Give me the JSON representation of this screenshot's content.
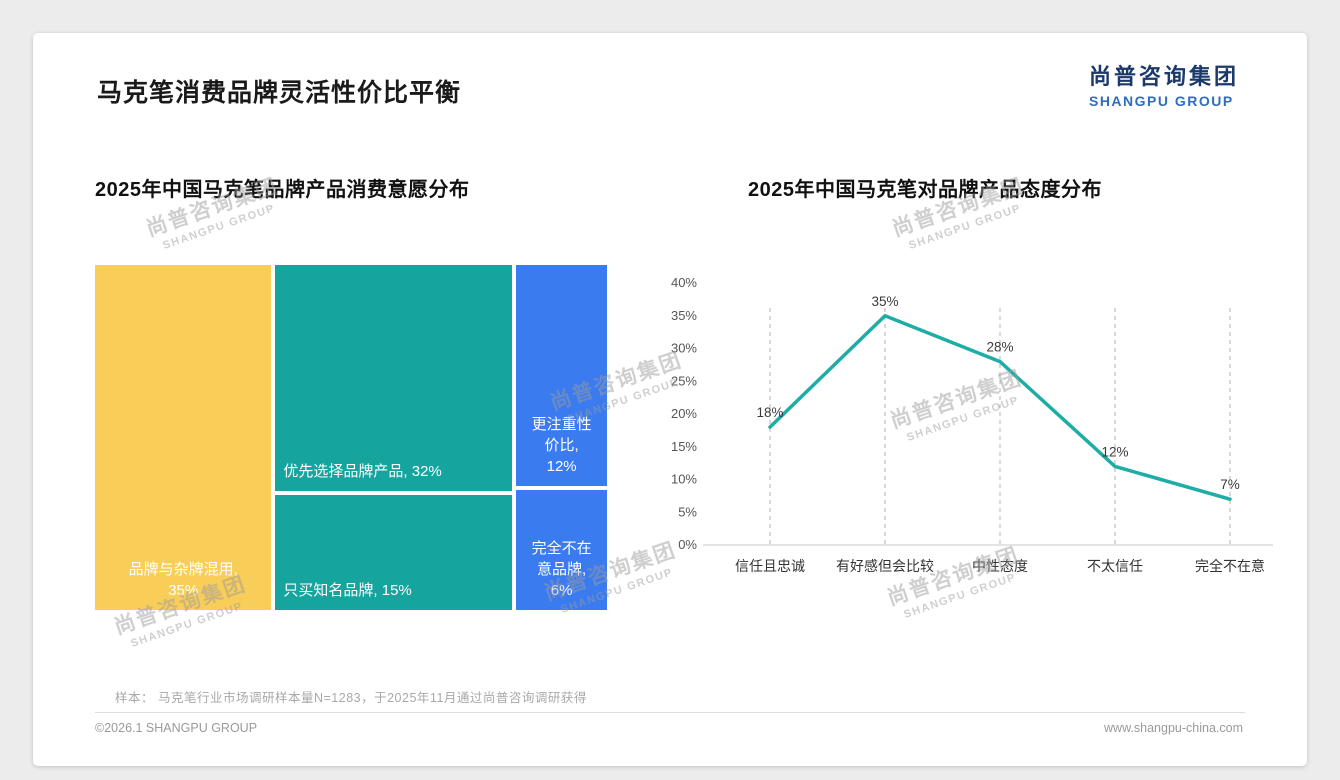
{
  "page": {
    "title": "马克笔消费品牌灵活性价比平衡",
    "sample_note": "样本： 马克笔行业市场调研样本量N=1283，于2025年11月通过尚普咨询调研获得",
    "copyright": "©2026.1 SHANGPU GROUP",
    "website": "www.shangpu-china.com"
  },
  "logo": {
    "cn": "尚普咨询集团",
    "en": "SHANGPU GROUP"
  },
  "watermark": {
    "cn": "尚普咨询集团",
    "en": "SHANGPU GROUP"
  },
  "chart_data": [
    {
      "type": "treemap",
      "title": "2025年中国马克笔品牌产品消费意愿分布",
      "segments": [
        {
          "label": "品牌与杂牌混用",
          "value": 35,
          "display": "品牌与杂牌混用, 35%",
          "text_lines": [
            "品牌与杂牌混用,",
            "35%"
          ],
          "color": "#F9CE58",
          "align": "center"
        },
        {
          "label": "优先选择品牌产品",
          "value": 32,
          "display": "优先选择品牌产品, 32%",
          "text_lines": [
            "优先选择品牌产品, 32%"
          ],
          "color": "#16A49F",
          "align": "left"
        },
        {
          "label": "只买知名品牌",
          "value": 15,
          "display": "只买知名品牌, 15%",
          "text_lines": [
            "只买知名品牌, 15%"
          ],
          "color": "#16A49F",
          "align": "left"
        },
        {
          "label": "更注重性价比",
          "value": 12,
          "display": "更注重性价比, 12%",
          "text_lines": [
            "更注重性",
            "价比,",
            "12%"
          ],
          "color": "#3B7BF0",
          "align": "center"
        },
        {
          "label": "完全不在意品牌",
          "value": 6,
          "display": "完全不在意品牌, 6%",
          "text_lines": [
            "完全不在",
            "意品牌,",
            "6%"
          ],
          "color": "#3B7BF0",
          "align": "center"
        }
      ],
      "layout_columns": [
        [
          0
        ],
        [
          1,
          2
        ],
        [
          3,
          4
        ]
      ]
    },
    {
      "type": "line",
      "title": "2025年中国马克笔对品牌产品态度分布",
      "categories": [
        "信任且忠诚",
        "有好感但会比较",
        "中性态度",
        "不太信任",
        "完全不在意"
      ],
      "values": [
        18,
        35,
        28,
        12,
        7
      ],
      "point_labels": [
        "18%",
        "35%",
        "28%",
        "12%",
        "7%"
      ],
      "ylim": [
        0,
        40
      ],
      "yticks": [
        0,
        5,
        10,
        15,
        20,
        25,
        30,
        35,
        40
      ],
      "ytick_labels": [
        "0%",
        "5%",
        "10%",
        "15%",
        "20%",
        "25%",
        "30%",
        "35%",
        "40%"
      ],
      "line_color": "#1EADA6",
      "grid": "dashed-vertical",
      "legend": "none"
    }
  ]
}
